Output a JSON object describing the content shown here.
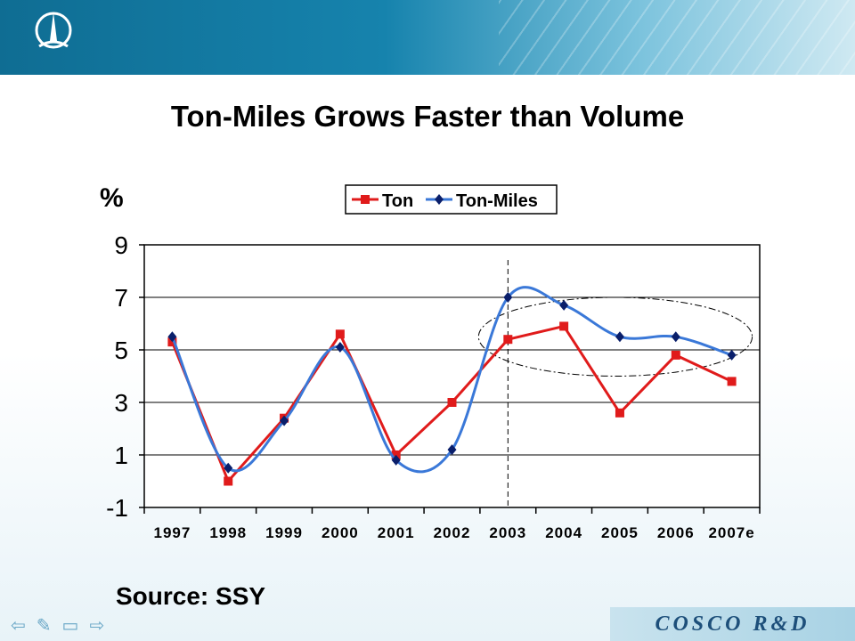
{
  "slide": {
    "title": "Ton-Miles Grows Faster than Volume",
    "unit_label": "%",
    "source": "Source: SSY",
    "brand": "COSCO R&D"
  },
  "nav": {
    "items": [
      "back-arrow-icon",
      "pen-icon",
      "screen-icon",
      "forward-arrow-icon"
    ]
  },
  "colors": {
    "ton": "#e01b1b",
    "ton_miles": "#3a78d8",
    "ton_marker": "#e01b1b",
    "ton_miles_marker": "#0a1f6b"
  },
  "chart_data": {
    "type": "line",
    "categories": [
      "1997",
      "1998",
      "1999",
      "2000",
      "2001",
      "2002",
      "2003",
      "2004",
      "2005",
      "2006",
      "2007e"
    ],
    "series": [
      {
        "name": "Ton",
        "values": [
          5.3,
          0.0,
          2.4,
          5.6,
          1.0,
          3.0,
          5.4,
          5.9,
          2.6,
          4.8,
          3.8
        ],
        "smooth": false
      },
      {
        "name": "Ton-Miles",
        "values": [
          5.5,
          0.5,
          2.3,
          5.1,
          0.8,
          1.2,
          7.0,
          6.7,
          5.5,
          5.5,
          4.8
        ],
        "smooth": true
      }
    ],
    "yticks": [
      "9",
      "7",
      "5",
      "3",
      "1",
      "-1"
    ],
    "ylim": [
      -1,
      9
    ],
    "grid": true,
    "legend": "top-center",
    "vline_at": "2003",
    "ellipse_over": [
      "2003",
      "2007e"
    ]
  }
}
